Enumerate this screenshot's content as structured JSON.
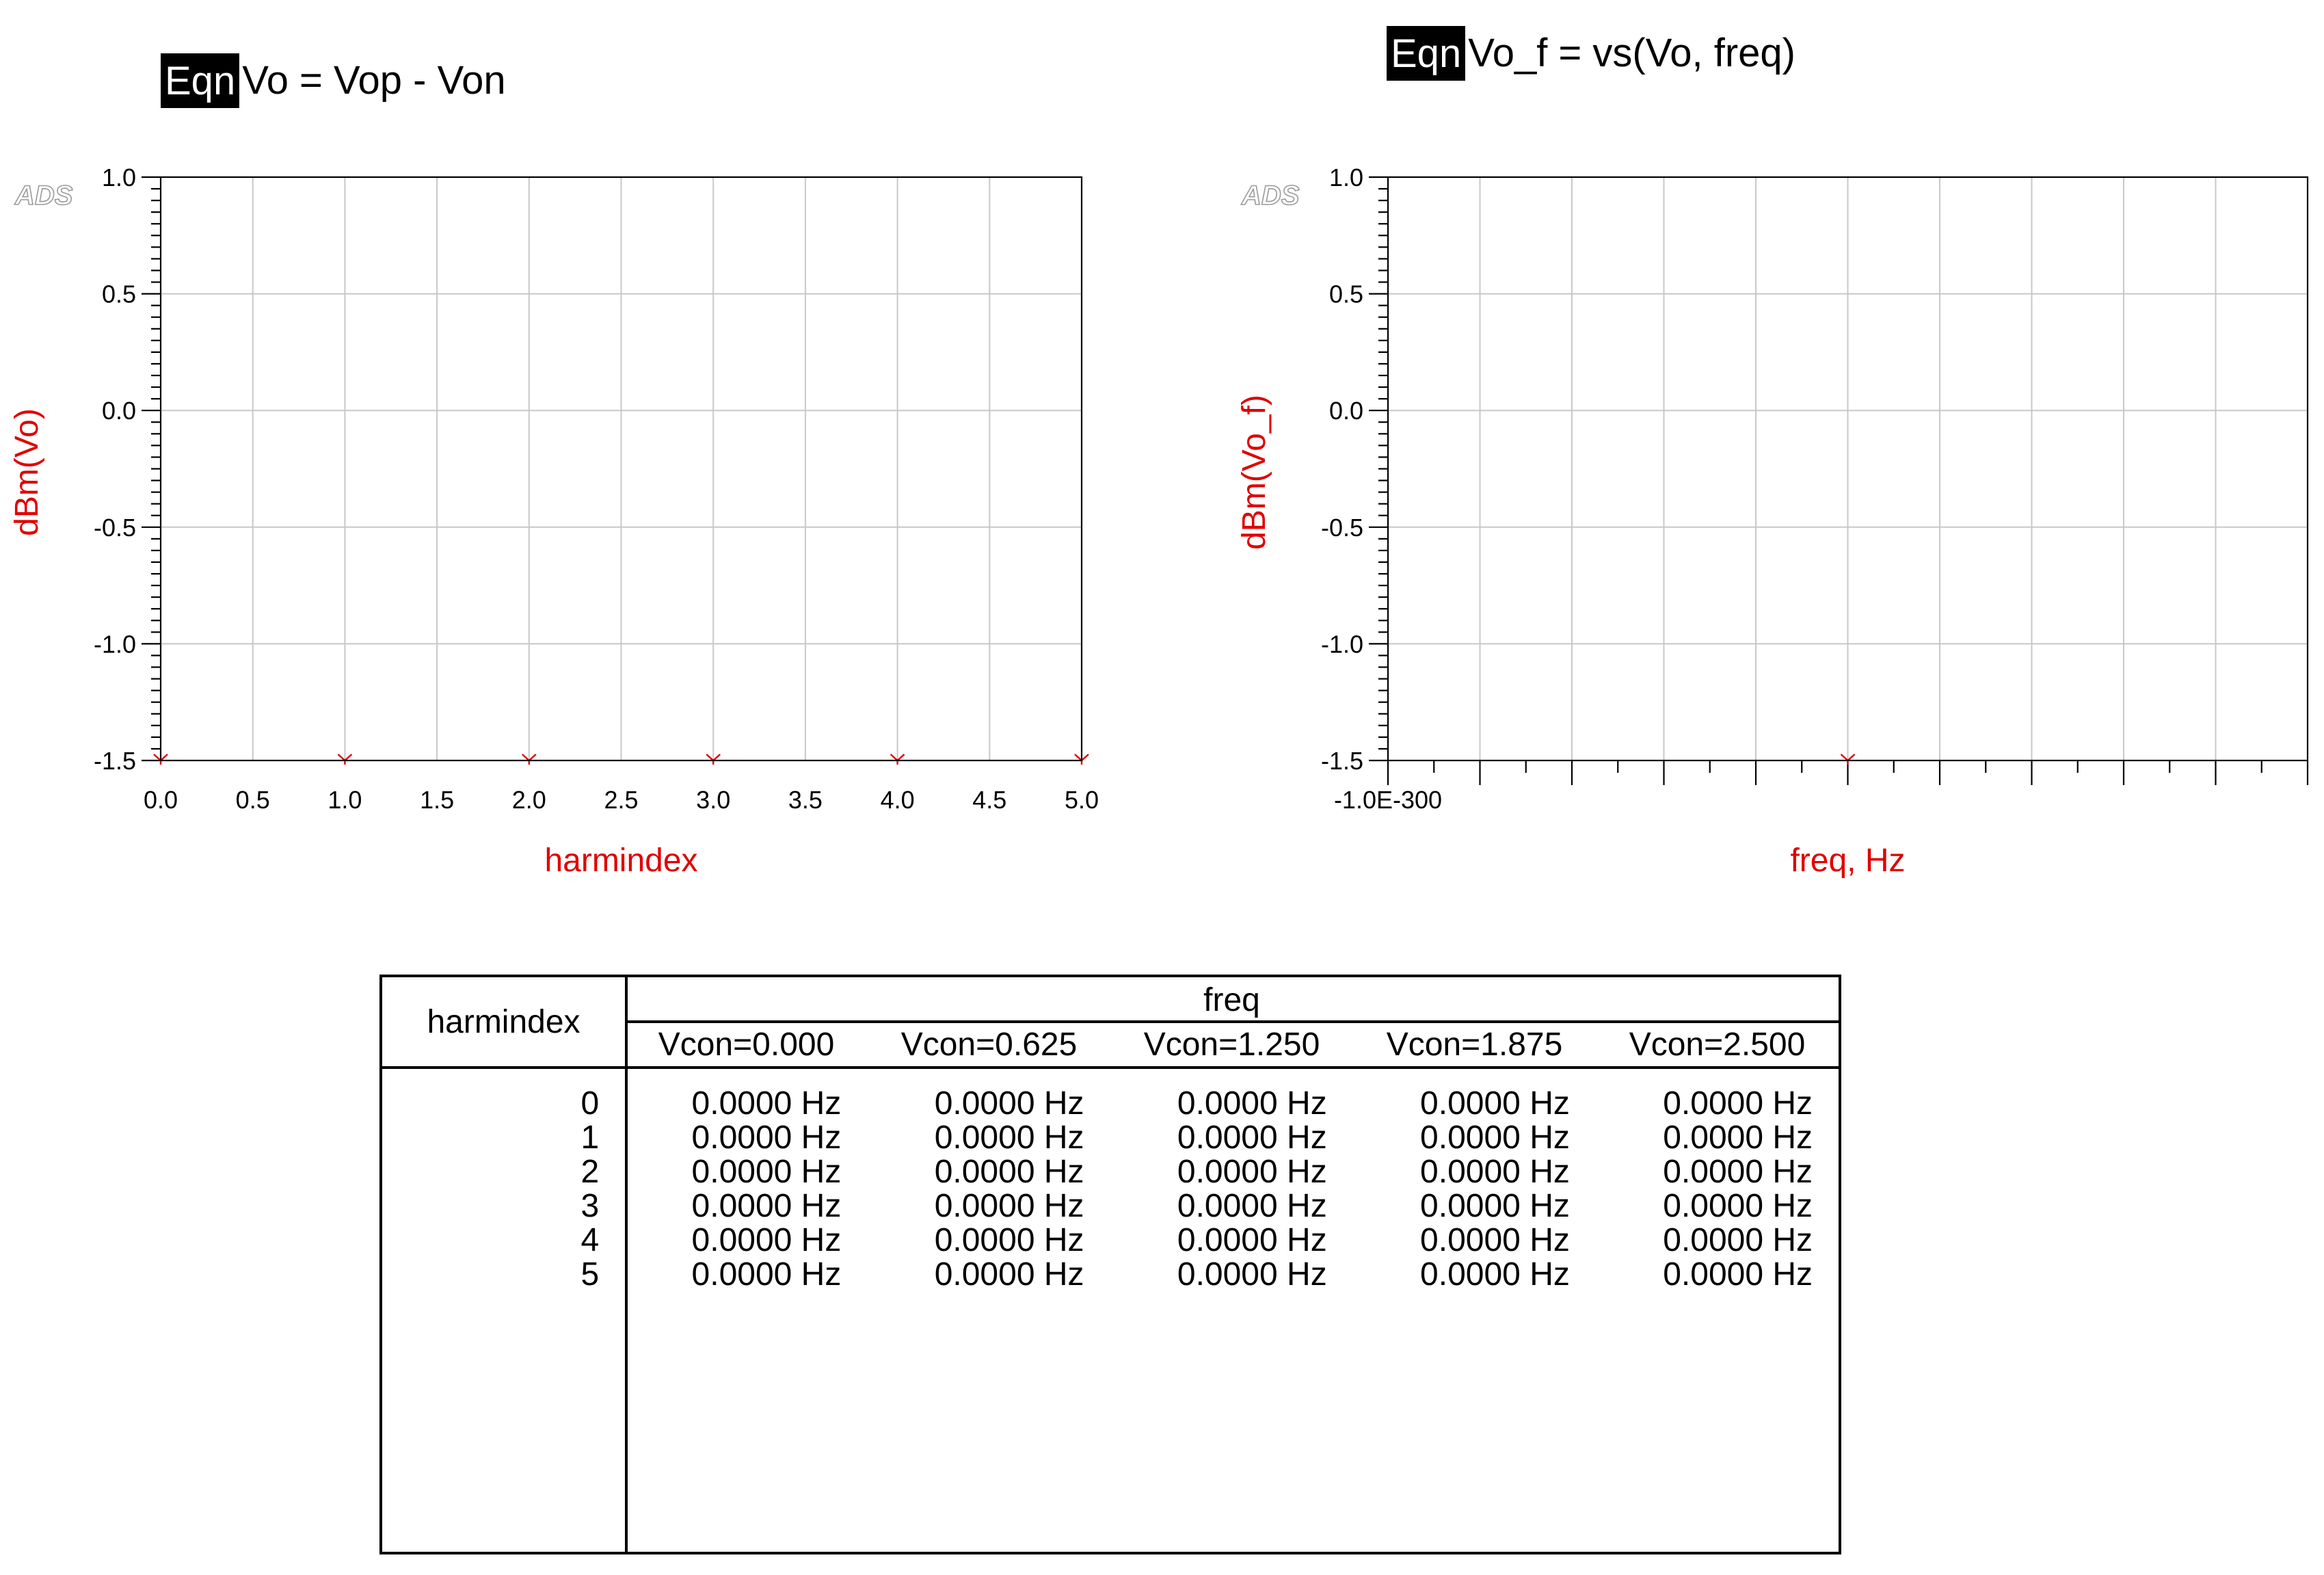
{
  "equations": [
    {
      "tag": "Eqn",
      "text": "Vo = Vop - Von"
    },
    {
      "tag": "Eqn",
      "text": "Vo_f = vs(Vo, freq)"
    }
  ],
  "logo_text": "ADS",
  "colors": {
    "axis_label": "#e00000",
    "marker": "#e00000",
    "grid": "#c8c8c8",
    "eqn_tag_bg": "#000000"
  },
  "chart_data": [
    {
      "type": "scatter",
      "title": "",
      "xlabel": "harmindex",
      "ylabel": "dBm(Vo)",
      "xlim": [
        0,
        5
      ],
      "ylim": [
        -1.5,
        1.0
      ],
      "grid": true,
      "x_ticks": [
        "0.0",
        "0.5",
        "1.0",
        "1.5",
        "2.0",
        "2.5",
        "3.0",
        "3.5",
        "4.0",
        "4.5",
        "5.0"
      ],
      "y_ticks": [
        "1.0",
        "0.5",
        "0.0",
        "-0.5",
        "-1.0",
        "-1.5"
      ],
      "series": [
        {
          "x": [
            0,
            1,
            2,
            3,
            4,
            5
          ],
          "y": [
            -1.5,
            -1.5,
            -1.5,
            -1.5,
            -1.5,
            -1.5
          ]
        }
      ]
    },
    {
      "type": "scatter",
      "title": "",
      "xlabel": "freq, Hz",
      "ylabel": "dBm(Vo_f)",
      "xlim": [
        -1e-300,
        1e-300
      ],
      "ylim": [
        -1.5,
        1.0
      ],
      "grid": true,
      "x_ticks": [
        "-1.0E-300"
      ],
      "y_ticks": [
        "1.0",
        "0.5",
        "0.0",
        "-0.5",
        "-1.0",
        "-1.5"
      ],
      "series": [
        {
          "x": [
            0
          ],
          "y": [
            -1.5
          ]
        }
      ]
    }
  ],
  "table": {
    "row_header": "harmindex",
    "group_header": "freq",
    "columns": [
      "Vcon=0.000",
      "Vcon=0.625",
      "Vcon=1.250",
      "Vcon=1.875",
      "Vcon=2.500"
    ],
    "rows": [
      {
        "index": "0",
        "values": [
          "0.0000 Hz",
          "0.0000 Hz",
          "0.0000 Hz",
          "0.0000 Hz",
          "0.0000 Hz"
        ]
      },
      {
        "index": "1",
        "values": [
          "0.0000 Hz",
          "0.0000 Hz",
          "0.0000 Hz",
          "0.0000 Hz",
          "0.0000 Hz"
        ]
      },
      {
        "index": "2",
        "values": [
          "0.0000 Hz",
          "0.0000 Hz",
          "0.0000 Hz",
          "0.0000 Hz",
          "0.0000 Hz"
        ]
      },
      {
        "index": "3",
        "values": [
          "0.0000 Hz",
          "0.0000 Hz",
          "0.0000 Hz",
          "0.0000 Hz",
          "0.0000 Hz"
        ]
      },
      {
        "index": "4",
        "values": [
          "0.0000 Hz",
          "0.0000 Hz",
          "0.0000 Hz",
          "0.0000 Hz",
          "0.0000 Hz"
        ]
      },
      {
        "index": "5",
        "values": [
          "0.0000 Hz",
          "0.0000 Hz",
          "0.0000 Hz",
          "0.0000 Hz",
          "0.0000 Hz"
        ]
      }
    ]
  }
}
